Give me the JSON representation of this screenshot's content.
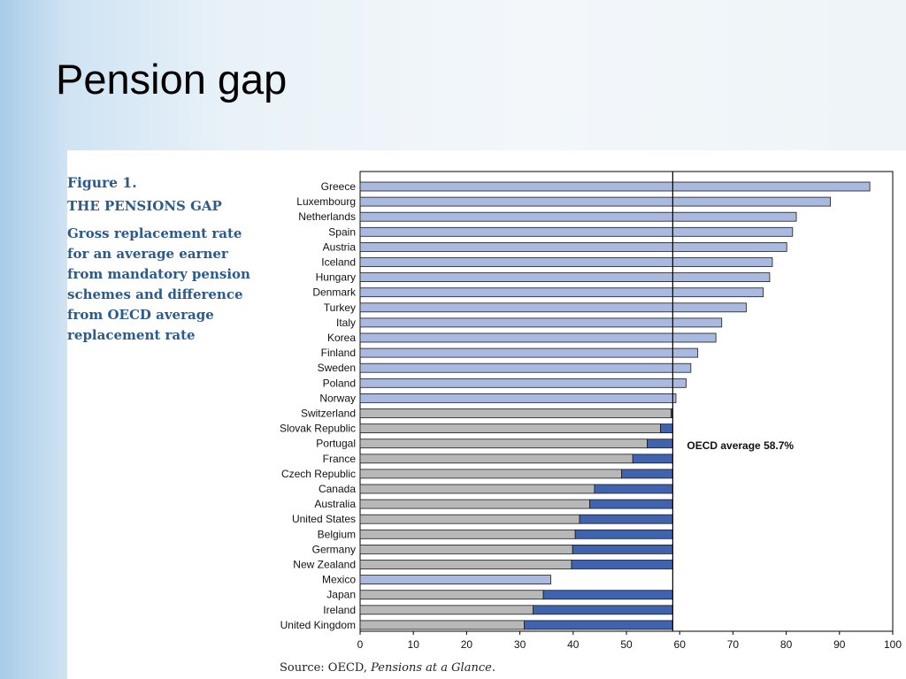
{
  "slide": {
    "title": "Pension gap"
  },
  "figure": {
    "number": "Figure 1.",
    "title": "THE PENSIONS GAP",
    "subtitle": "Gross replacement rate for an average earner from mandatory pension schemes and difference from OECD average replacement rate",
    "source_prefix": "Source: OECD, ",
    "source_title": "Pensions at a Glance",
    "source_suffix": "."
  },
  "colors": {
    "above_bar": "#a9b9e0",
    "gray_bar": "#b8b8b8",
    "gap_bar": "#4063b0",
    "bar_outline": "#1a1a1a",
    "average_line": "#000000"
  },
  "chart_data": {
    "type": "bar",
    "orientation": "horizontal",
    "stacked_gap_to_average": true,
    "average": 58.7,
    "average_label": "OECD average 58.7%",
    "xlim": [
      0,
      100
    ],
    "xticks": [
      0,
      10,
      20,
      30,
      40,
      50,
      60,
      70,
      80,
      90,
      100
    ],
    "grid": false,
    "categories": [
      "Greece",
      "Luxembourg",
      "Netherlands",
      "Spain",
      "Austria",
      "Iceland",
      "Hungary",
      "Denmark",
      "Turkey",
      "Italy",
      "Korea",
      "Finland",
      "Sweden",
      "Poland",
      "Norway",
      "Switzerland",
      "Slovak Republic",
      "Portugal",
      "France",
      "Czech Republic",
      "Canada",
      "Australia",
      "United States",
      "Belgium",
      "Germany",
      "New Zealand",
      "Mexico",
      "Japan",
      "Ireland",
      "United Kingdom"
    ],
    "values": [
      95.7,
      88.3,
      81.9,
      81.2,
      80.1,
      77.4,
      76.9,
      75.7,
      72.5,
      67.9,
      66.8,
      63.4,
      62.1,
      61.2,
      59.3,
      58.4,
      56.4,
      53.9,
      51.2,
      49.1,
      44.0,
      43.1,
      41.2,
      40.4,
      39.9,
      39.7,
      35.8,
      34.4,
      32.5,
      30.8
    ],
    "highlighted": [
      "Norway",
      "Mexico"
    ]
  }
}
